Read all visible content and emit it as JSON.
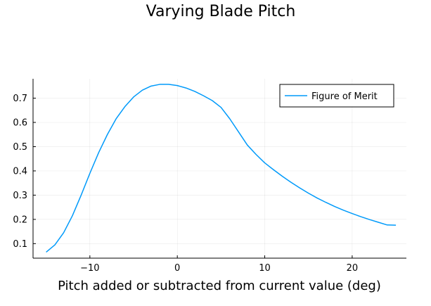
{
  "chart_data": {
    "type": "line",
    "title": "Varying Blade Pitch",
    "xlabel": "Pitch added or subtracted from current value (deg)",
    "ylabel": "",
    "xlim": [
      -16.5,
      26.2
    ],
    "ylim": [
      0.04,
      0.78
    ],
    "xticks": [
      -10,
      0,
      10,
      20
    ],
    "yticks": [
      0.1,
      0.2,
      0.3,
      0.4,
      0.5,
      0.6,
      0.7
    ],
    "xtick_labels": [
      "−10",
      "0",
      "10",
      "20"
    ],
    "ytick_labels": [
      "0.1",
      "0.2",
      "0.3",
      "0.4",
      "0.5",
      "0.6",
      "0.7"
    ],
    "grid": true,
    "legend_position": "top-right",
    "series": [
      {
        "name": "Figure of Merit",
        "color": "#009AFA",
        "x": [
          -15,
          -14,
          -13,
          -12,
          -11,
          -10,
          -9,
          -8,
          -7,
          -6,
          -5,
          -4,
          -3,
          -2,
          -1,
          0,
          1,
          2,
          3,
          4,
          5,
          6,
          7,
          8,
          9,
          10,
          11,
          12,
          13,
          14,
          15,
          16,
          17,
          18,
          19,
          20,
          21,
          22,
          23,
          24,
          25
        ],
        "y": [
          0.065,
          0.095,
          0.145,
          0.215,
          0.3,
          0.39,
          0.475,
          0.55,
          0.615,
          0.665,
          0.705,
          0.733,
          0.75,
          0.757,
          0.757,
          0.752,
          0.742,
          0.728,
          0.71,
          0.69,
          0.662,
          0.615,
          0.561,
          0.507,
          0.468,
          0.433,
          0.405,
          0.378,
          0.353,
          0.33,
          0.308,
          0.288,
          0.27,
          0.253,
          0.238,
          0.224,
          0.211,
          0.199,
          0.188,
          0.177,
          0.176
        ]
      }
    ]
  }
}
